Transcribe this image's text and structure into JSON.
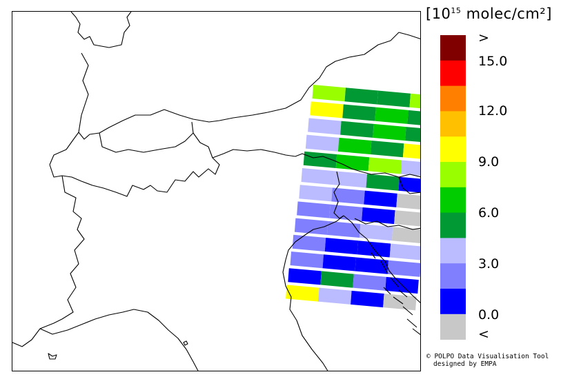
{
  "legend": {
    "unit_prefix": "[10",
    "unit_exponent": "15",
    "unit_suffix": " molec/cm²]",
    "tick_labels": [
      ">",
      "15.0",
      "12.0",
      "9.0",
      "6.0",
      "3.0",
      "0.0",
      "<"
    ],
    "colors_top_to_bottom": [
      "#800000",
      "#ff0000",
      "#ff8000",
      "#ffc000",
      "#ffff00",
      "#99ff00",
      "#00cc00",
      "#009933",
      "#bbbbff",
      "#8080ff",
      "#0000ff",
      "#c8c8c8"
    ]
  },
  "credit": {
    "line1": "© POLPO Data Visualisation Tool",
    "line2": "designed by EMPA"
  },
  "swath": {
    "note_colors": {
      "lgreen": "#99ff00",
      "green": "#00cc00",
      "dgreen": "#009933",
      "yellow": "#ffff00",
      "lblue": "#bbbbff",
      "mblue": "#8080ff",
      "blue": "#0000ff",
      "grey": "#c8c8c8"
    },
    "rows": [
      [
        "lgreen",
        "dgreen",
        "dgreen",
        "lgreen"
      ],
      [
        "yellow",
        "dgreen",
        "green",
        "dgreen"
      ],
      [
        "lblue",
        "dgreen",
        "green",
        "dgreen"
      ],
      [
        "lblue",
        "green",
        "dgreen",
        "yellow"
      ],
      [
        "dgreen",
        "green",
        "lgreen",
        "lblue"
      ],
      [
        "lblue",
        "lblue",
        "dgreen",
        "blue"
      ],
      [
        "lblue",
        "mblue",
        "blue",
        "grey"
      ],
      [
        "mblue",
        "mblue",
        "blue",
        "grey"
      ],
      [
        "mblue",
        "mblue",
        "lblue",
        "grey"
      ],
      [
        "mblue",
        "blue",
        "blue",
        "lblue"
      ],
      [
        "mblue",
        "blue",
        "blue",
        "mblue"
      ],
      [
        "blue",
        "dgreen",
        "mblue",
        "blue"
      ],
      [
        "yellow",
        "lblue",
        "blue",
        "grey"
      ]
    ]
  }
}
